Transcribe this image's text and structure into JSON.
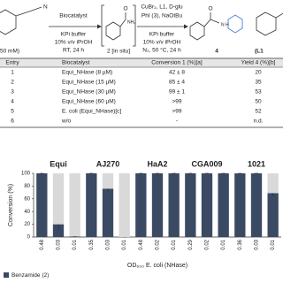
{
  "scheme": {
    "substrate_conc": "50 mM)",
    "nitrile_n": "N",
    "step1_above": "Biocatalyst",
    "step1_below": [
      "KPi buffer",
      "10% v/v iPrOH",
      "RT, 24 h"
    ],
    "intermediate_o": "O",
    "intermediate_nh2": "NH₂",
    "intermediate_label": "2 [in situ]",
    "step2_above": [
      "CuBr₂, L1, D-glu",
      "PhI (3), NaOtBu"
    ],
    "step2_below": [
      "KPi buffer",
      "10% v/v iPrOH",
      "N₂, 50 °C, 24 h"
    ],
    "product_o": "O",
    "product_nh": "N\nH",
    "product_label": "4",
    "ligand_label": "(L1"
  },
  "table": {
    "header": [
      "Entry",
      "Biocatalyst",
      "Conversion 1 (%)[a]",
      "Yield 4 (%)[b]"
    ],
    "rows": [
      [
        "1",
        "Equi_NHase (8 µM)",
        "42 ± 8",
        "20"
      ],
      [
        "2",
        "Equi_NHase (15 µM)",
        "85 ± 4",
        "35"
      ],
      [
        "3",
        "Equi_NHase (30 µM)",
        "99 ± 1",
        "53"
      ],
      [
        "4",
        "Equi_NHase (60 µM)",
        ">99",
        "50"
      ],
      [
        "5",
        "E. coli (Equi_NHase)[c]",
        ">99",
        "52"
      ],
      [
        "6",
        "w/o",
        "-",
        "n.d."
      ]
    ]
  },
  "chart_data": {
    "type": "bar",
    "groups": [
      "Equi",
      "AJ270",
      "HaA2",
      "CGA009",
      "1021"
    ],
    "categories": [
      "0.48",
      "0.03",
      "0.01",
      "0.35",
      "0.03",
      "0.01",
      "0.48",
      "0.02",
      "0.01",
      "0.29",
      "0.02",
      "0.01",
      "0.36",
      "0.03",
      "0.01"
    ],
    "series": [
      {
        "name": "Benzamide (2)",
        "color": "#3b4a63",
        "values": [
          100,
          20,
          1,
          100,
          76,
          0,
          100,
          100,
          100,
          100,
          100,
          100,
          100,
          100,
          69
        ],
        "errors": [
          0,
          10,
          0,
          0,
          4,
          0,
          0,
          0,
          0,
          0,
          0,
          0,
          0,
          0,
          5
        ]
      },
      {
        "color": "#d9d9d9",
        "values": [
          0,
          80,
          99,
          0,
          24,
          100,
          0,
          0,
          0,
          0,
          0,
          0,
          0,
          0,
          31
        ]
      }
    ],
    "y_label": "Conversion (%)",
    "x_label": "OD₆₀₀ E. coli (NHase)",
    "ylim": [
      0,
      100
    ],
    "yticks": [
      0,
      20,
      40,
      60,
      80,
      100
    ],
    "legend": "bottom-left"
  }
}
